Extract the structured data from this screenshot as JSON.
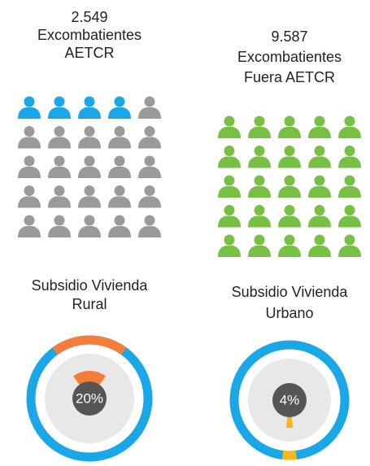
{
  "panels": [
    {
      "count": "2.549",
      "label_lines": [
        "Excombatientes",
        "AETCR"
      ],
      "icons_total": 25,
      "icons_highlighted": 4,
      "subsidy_lines": [
        "Subsidio Vivienda",
        "Rural"
      ],
      "percent": 20,
      "percent_label": "20%"
    },
    {
      "count": "9.587",
      "label_lines": [
        "Excombatientes",
        "Fuera AETCR"
      ],
      "icons_total": 25,
      "icons_highlighted": 25,
      "subsidy_lines": [
        "Subsidio Vivienda",
        "Urbano"
      ],
      "percent": 4,
      "percent_label": "4%"
    }
  ]
}
